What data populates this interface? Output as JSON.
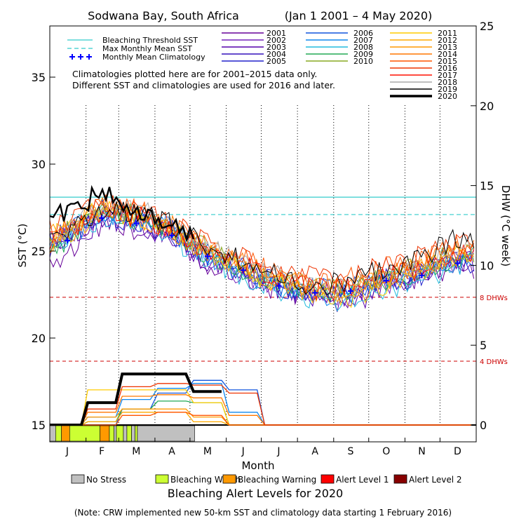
{
  "chart_data": {
    "type": "line",
    "title": "Sodwana Bay, South Africa",
    "date_range": "(Jan 1 2001 – 4 May 2020)",
    "xlabel": "Month",
    "ylabel_left": "SST (°C)",
    "ylabel_right": "DHW (°C week)",
    "ylim_left": [
      15,
      38
    ],
    "ylim_right": [
      0,
      25
    ],
    "left_ticks": [
      15,
      20,
      25,
      30,
      35
    ],
    "right_ticks": [
      0,
      5,
      10,
      15,
      20,
      25
    ],
    "month_labels": [
      "J",
      "F",
      "M",
      "A",
      "M",
      "J",
      "J",
      "A",
      "S",
      "O",
      "N",
      "D"
    ],
    "bleaching_threshold_sst": 28.1,
    "max_monthly_mean_sst": 27.1,
    "dhw_reference_lines": [
      {
        "label": "4 DHWs",
        "value": 4,
        "color": "#cc0000"
      },
      {
        "label": "8 DHWs",
        "value": 8,
        "color": "#cc0000"
      }
    ],
    "legend_lines": [
      {
        "label": "Bleaching Threshold SST",
        "color": "#33cccc",
        "style": "solid"
      },
      {
        "label": "Max Monthly Mean SST",
        "color": "#33cccc",
        "style": "dashed"
      },
      {
        "label": "Monthly Mean Climatology",
        "color": "#0000ff",
        "style": "plus"
      }
    ],
    "note_lines": [
      "Climatologies plotted here are for 2001–2015 data only.",
      "Different SST and climatologies are used for 2016 and later."
    ],
    "climatology": [
      25.6,
      26.9,
      26.6,
      25.9,
      24.7,
      23.9,
      23.0,
      22.6,
      22.7,
      23.3,
      23.6,
      24.3
    ],
    "series": [
      {
        "name": "2001",
        "color": "#660099",
        "sst": [
          25.0,
          26.5,
          26.3,
          25.5,
          24.3,
          23.5,
          22.7,
          22.3,
          22.4,
          23.0,
          23.4,
          24.0
        ],
        "dhw": [
          0,
          0,
          0,
          0,
          0,
          0,
          0,
          0,
          0,
          0,
          0,
          0
        ]
      },
      {
        "name": "2002",
        "color": "#7722bb",
        "sst": [
          26.0,
          27.0,
          26.8,
          26.0,
          24.6,
          23.6,
          22.8,
          22.6,
          22.5,
          23.1,
          23.7,
          24.5
        ],
        "dhw": [
          0,
          0,
          0,
          0,
          0,
          0,
          0,
          0,
          0,
          0,
          0,
          0
        ]
      },
      {
        "name": "2003",
        "color": "#5500aa",
        "sst": [
          25.5,
          26.7,
          26.6,
          25.8,
          24.4,
          23.7,
          22.9,
          22.4,
          21.9,
          22.9,
          23.5,
          24.4
        ],
        "dhw": [
          0,
          0,
          0,
          0,
          0,
          0,
          0,
          0,
          0,
          0,
          0,
          0
        ]
      },
      {
        "name": "2004",
        "color": "#3311bb",
        "sst": [
          25.8,
          27.2,
          26.9,
          26.2,
          24.9,
          24.0,
          23.1,
          22.7,
          22.6,
          23.4,
          23.8,
          24.6
        ],
        "dhw": [
          0,
          0,
          0,
          0,
          0,
          0,
          0,
          0,
          0,
          0,
          0,
          0
        ]
      },
      {
        "name": "2005",
        "color": "#2222cc",
        "sst": [
          26.1,
          27.1,
          26.7,
          26.0,
          24.8,
          23.9,
          23.0,
          22.5,
          22.7,
          23.2,
          23.6,
          24.3
        ],
        "dhw": [
          0,
          0,
          0,
          0,
          0,
          0,
          0,
          0,
          0,
          0,
          0,
          0
        ]
      },
      {
        "name": "2006",
        "color": "#1155dd",
        "sst": [
          26.3,
          27.4,
          27.2,
          26.3,
          25.0,
          24.1,
          23.2,
          22.8,
          22.8,
          23.5,
          24.0,
          24.8
        ],
        "dhw": [
          0,
          0,
          1.0,
          2.0,
          2.8,
          2.2,
          0,
          0,
          0,
          0,
          0,
          0
        ]
      },
      {
        "name": "2007",
        "color": "#1188ee",
        "sst": [
          25.9,
          27.0,
          26.9,
          26.1,
          24.7,
          23.8,
          22.9,
          22.4,
          22.5,
          23.2,
          23.7,
          24.5
        ],
        "dhw": [
          0,
          0.5,
          1.6,
          2.3,
          2.6,
          0.8,
          0,
          0,
          0,
          0,
          0,
          0
        ]
      },
      {
        "name": "2008",
        "color": "#22bbdd",
        "sst": [
          26.0,
          26.8,
          26.5,
          25.7,
          24.5,
          23.6,
          22.7,
          22.2,
          22.1,
          22.8,
          23.4,
          24.2
        ],
        "dhw": [
          0,
          0,
          0,
          0,
          0,
          0,
          0,
          0,
          0,
          0,
          0,
          0
        ]
      },
      {
        "name": "2009",
        "color": "#22aa55",
        "sst": [
          25.7,
          27.3,
          26.8,
          26.0,
          24.8,
          23.9,
          23.1,
          22.6,
          22.6,
          23.3,
          23.9,
          24.6
        ],
        "dhw": [
          0,
          0.2,
          1.0,
          1.5,
          1.4,
          0,
          0,
          0,
          0,
          0,
          0,
          0
        ]
      },
      {
        "name": "2010",
        "color": "#88aa22",
        "sst": [
          26.2,
          27.6,
          27.1,
          26.3,
          25.1,
          24.2,
          23.3,
          22.9,
          22.9,
          23.6,
          24.1,
          24.9
        ],
        "dhw": [
          0,
          0,
          0,
          0,
          0,
          0,
          0,
          0,
          0,
          0,
          0,
          0
        ]
      },
      {
        "name": "2011",
        "color": "#ffcc00",
        "sst": [
          26.5,
          27.5,
          27.0,
          26.2,
          24.9,
          24.0,
          23.1,
          22.4,
          22.4,
          23.1,
          23.9,
          24.8
        ],
        "dhw": [
          0,
          2.2,
          2.2,
          2.2,
          1.4,
          0,
          0,
          0,
          0,
          0,
          0,
          0
        ]
      },
      {
        "name": "2012",
        "color": "#ffaa00",
        "sst": [
          26.0,
          27.2,
          26.9,
          26.1,
          24.9,
          24.0,
          23.2,
          22.6,
          22.5,
          23.3,
          23.9,
          24.7
        ],
        "dhw": [
          0,
          0.2,
          0.8,
          0.8,
          0.2,
          0,
          0,
          0,
          0,
          0,
          0,
          0
        ]
      },
      {
        "name": "2013",
        "color": "#ff9900",
        "sst": [
          26.4,
          27.3,
          27.0,
          26.2,
          25.0,
          24.1,
          23.3,
          22.9,
          22.8,
          23.5,
          24.0,
          24.8
        ],
        "dhw": [
          0,
          0.5,
          1.0,
          1.0,
          0.5,
          0,
          0,
          0,
          0,
          0,
          0,
          0
        ]
      },
      {
        "name": "2014",
        "color": "#ff7700",
        "sst": [
          26.1,
          27.6,
          27.3,
          26.4,
          25.2,
          24.3,
          23.5,
          23.0,
          22.9,
          23.7,
          24.3,
          25.0
        ],
        "dhw": [
          0,
          0.8,
          1.8,
          1.9,
          1.7,
          0.6,
          0,
          0,
          0,
          0,
          0,
          0
        ]
      },
      {
        "name": "2015",
        "color": "#ff5500",
        "sst": [
          26.3,
          27.7,
          27.4,
          26.5,
          25.3,
          24.5,
          23.6,
          23.3,
          23.4,
          24.2,
          24.5,
          25.3
        ],
        "dhw": [
          0,
          0,
          0.6,
          0.8,
          0.6,
          0,
          0,
          0,
          0,
          0,
          0,
          0
        ]
      },
      {
        "name": "2016",
        "color": "#ee3300",
        "sst": [
          26.7,
          27.8,
          27.4,
          26.6,
          25.4,
          24.6,
          23.8,
          23.5,
          23.6,
          24.2,
          24.7,
          25.5
        ],
        "dhw": [
          0,
          1.0,
          2.4,
          2.6,
          2.5,
          2.0,
          0,
          0,
          0,
          0,
          0,
          0
        ]
      },
      {
        "name": "2017",
        "color": "#ff1100",
        "sst": [
          26.0,
          27.3,
          27.0,
          26.3,
          25.0,
          24.1,
          23.3,
          22.8,
          22.8,
          23.5,
          24.0,
          24.9
        ],
        "dhw": [
          0,
          0,
          0,
          0,
          0,
          0,
          0,
          0,
          0,
          0,
          0,
          0
        ]
      },
      {
        "name": "2018",
        "color": "#aaaaaa",
        "sst": [
          26.2,
          27.5,
          27.3,
          26.8,
          25.4,
          24.4,
          23.5,
          23.0,
          22.9,
          23.6,
          24.1,
          25.0
        ],
        "dhw": [
          0,
          0,
          0,
          0,
          0,
          0,
          0,
          0,
          0,
          0,
          0,
          0
        ]
      },
      {
        "name": "2019",
        "color": "#000000",
        "sst": [
          26.2,
          27.4,
          27.2,
          26.6,
          25.2,
          24.4,
          23.6,
          23.0,
          23.4,
          24.0,
          24.6,
          25.8
        ],
        "dhw": [
          0,
          0,
          0,
          0,
          0,
          0,
          0,
          0,
          0,
          0,
          0,
          0
        ]
      },
      {
        "name": "2020",
        "color": "#000000",
        "sst": [
          27.4,
          28.3,
          27.4,
          26.3,
          25.8
        ],
        "dhw": [
          0,
          1.4,
          3.2,
          3.2,
          2.1
        ]
      }
    ],
    "alert_legend": [
      {
        "label": "No Stress",
        "color": "#c0c0c0"
      },
      {
        "label": "Bleaching Watch",
        "color": "#ccff33"
      },
      {
        "label": "Bleaching Warning",
        "color": "#ff9900"
      },
      {
        "label": "Alert Level 1",
        "color": "#ff0000"
      },
      {
        "label": "Alert Level 2",
        "color": "#880000"
      }
    ],
    "alert_bar_2020": [
      {
        "start_doy": 1,
        "end_doy": 6,
        "level": 0
      },
      {
        "start_doy": 6,
        "end_doy": 11,
        "level": 1
      },
      {
        "start_doy": 11,
        "end_doy": 18,
        "level": 2
      },
      {
        "start_doy": 18,
        "end_doy": 44,
        "level": 1
      },
      {
        "start_doy": 44,
        "end_doy": 52,
        "level": 2
      },
      {
        "start_doy": 52,
        "end_doy": 56,
        "level": 1
      },
      {
        "start_doy": 56,
        "end_doy": 58,
        "level": 0
      },
      {
        "start_doy": 58,
        "end_doy": 64,
        "level": 1
      },
      {
        "start_doy": 64,
        "end_doy": 67,
        "level": 0
      },
      {
        "start_doy": 67,
        "end_doy": 71,
        "level": 1
      },
      {
        "start_doy": 71,
        "end_doy": 74,
        "level": 0
      },
      {
        "start_doy": 74,
        "end_doy": 76,
        "level": 1
      },
      {
        "start_doy": 76,
        "end_doy": 125,
        "level": 0
      }
    ],
    "alert_title": "Bleaching Alert Levels for 2020",
    "footnote": "(Note: CRW implemented new 50-km SST and climatology data starting 1 February 2016)"
  }
}
